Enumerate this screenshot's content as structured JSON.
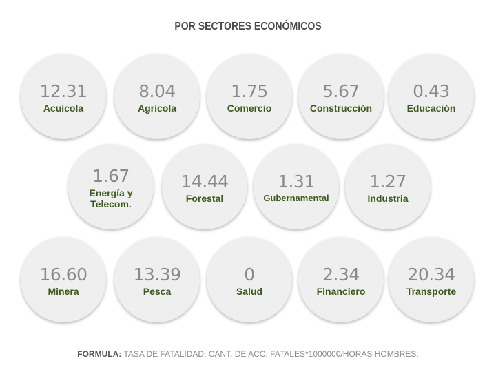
{
  "title": "POR SECTORES ECONÓMICOS",
  "sectors": [
    {
      "value": "12.31",
      "label": "Acuícola"
    },
    {
      "value": "8.04",
      "label": "Agrícola"
    },
    {
      "value": "1.75",
      "label": "Comercio"
    },
    {
      "value": "5.67",
      "label": "Construcción"
    },
    {
      "value": "0.43",
      "label": "Educación"
    },
    {
      "value": "1.67",
      "label": "Energía y\nTelecom."
    },
    {
      "value": "14.44",
      "label": "Forestal"
    },
    {
      "value": "1.31",
      "label": "Gubernamental"
    },
    {
      "value": "1.27",
      "label": "Industria"
    },
    {
      "value": "16.60",
      "label": "Minera"
    },
    {
      "value": "13.39",
      "label": "Pesca"
    },
    {
      "value": "0",
      "label": "Salud"
    },
    {
      "value": "2.34",
      "label": "Financiero"
    },
    {
      "value": "20.34",
      "label": "Transporte"
    }
  ],
  "footer": {
    "label": "FORMULA:",
    "text": "TASA DE FATALIDAD: CANT. DE ACC. FATALES*1000000/HORAS HOMBRES."
  }
}
